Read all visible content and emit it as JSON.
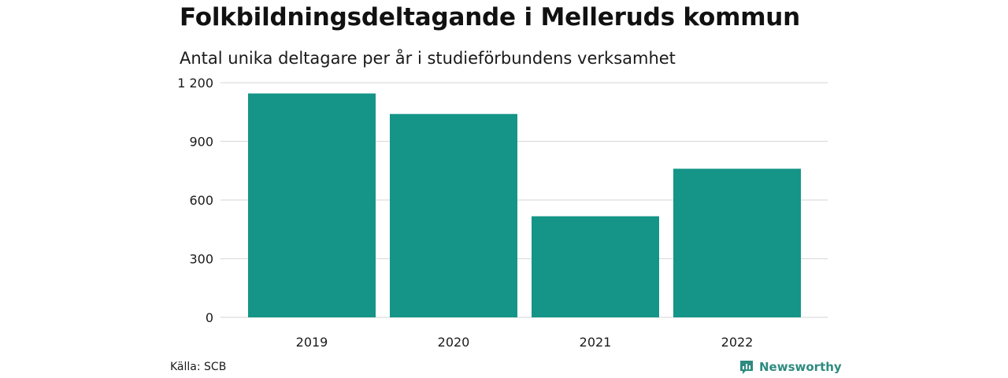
{
  "header": {
    "title": "Folkbildningsdeltagande i Melleruds kommun",
    "subtitle": "Antal unika deltagare per år i studieförbundens verksamhet"
  },
  "footer": {
    "source": "Källa: SCB",
    "brand": "Newsworthy",
    "brand_icon": "newsworthy-logo-icon"
  },
  "colors": {
    "bar": "#149588",
    "grid": "#dddddd",
    "brand": "#2e8b80"
  },
  "chart_data": {
    "type": "bar",
    "title": "Folkbildningsdeltagande i Melleruds kommun",
    "subtitle": "Antal unika deltagare per år i studieförbundens verksamhet",
    "categories": [
      "2019",
      "2020",
      "2021",
      "2022"
    ],
    "values": [
      1145,
      1040,
      517,
      760
    ],
    "ylim": [
      0,
      1200
    ],
    "yticks": [
      0,
      300,
      600,
      900,
      1200
    ],
    "ytick_labels": [
      "0",
      "300",
      "600",
      "900",
      "1 200"
    ],
    "xlabel": "",
    "ylabel": "",
    "grid": true,
    "legend": false
  }
}
